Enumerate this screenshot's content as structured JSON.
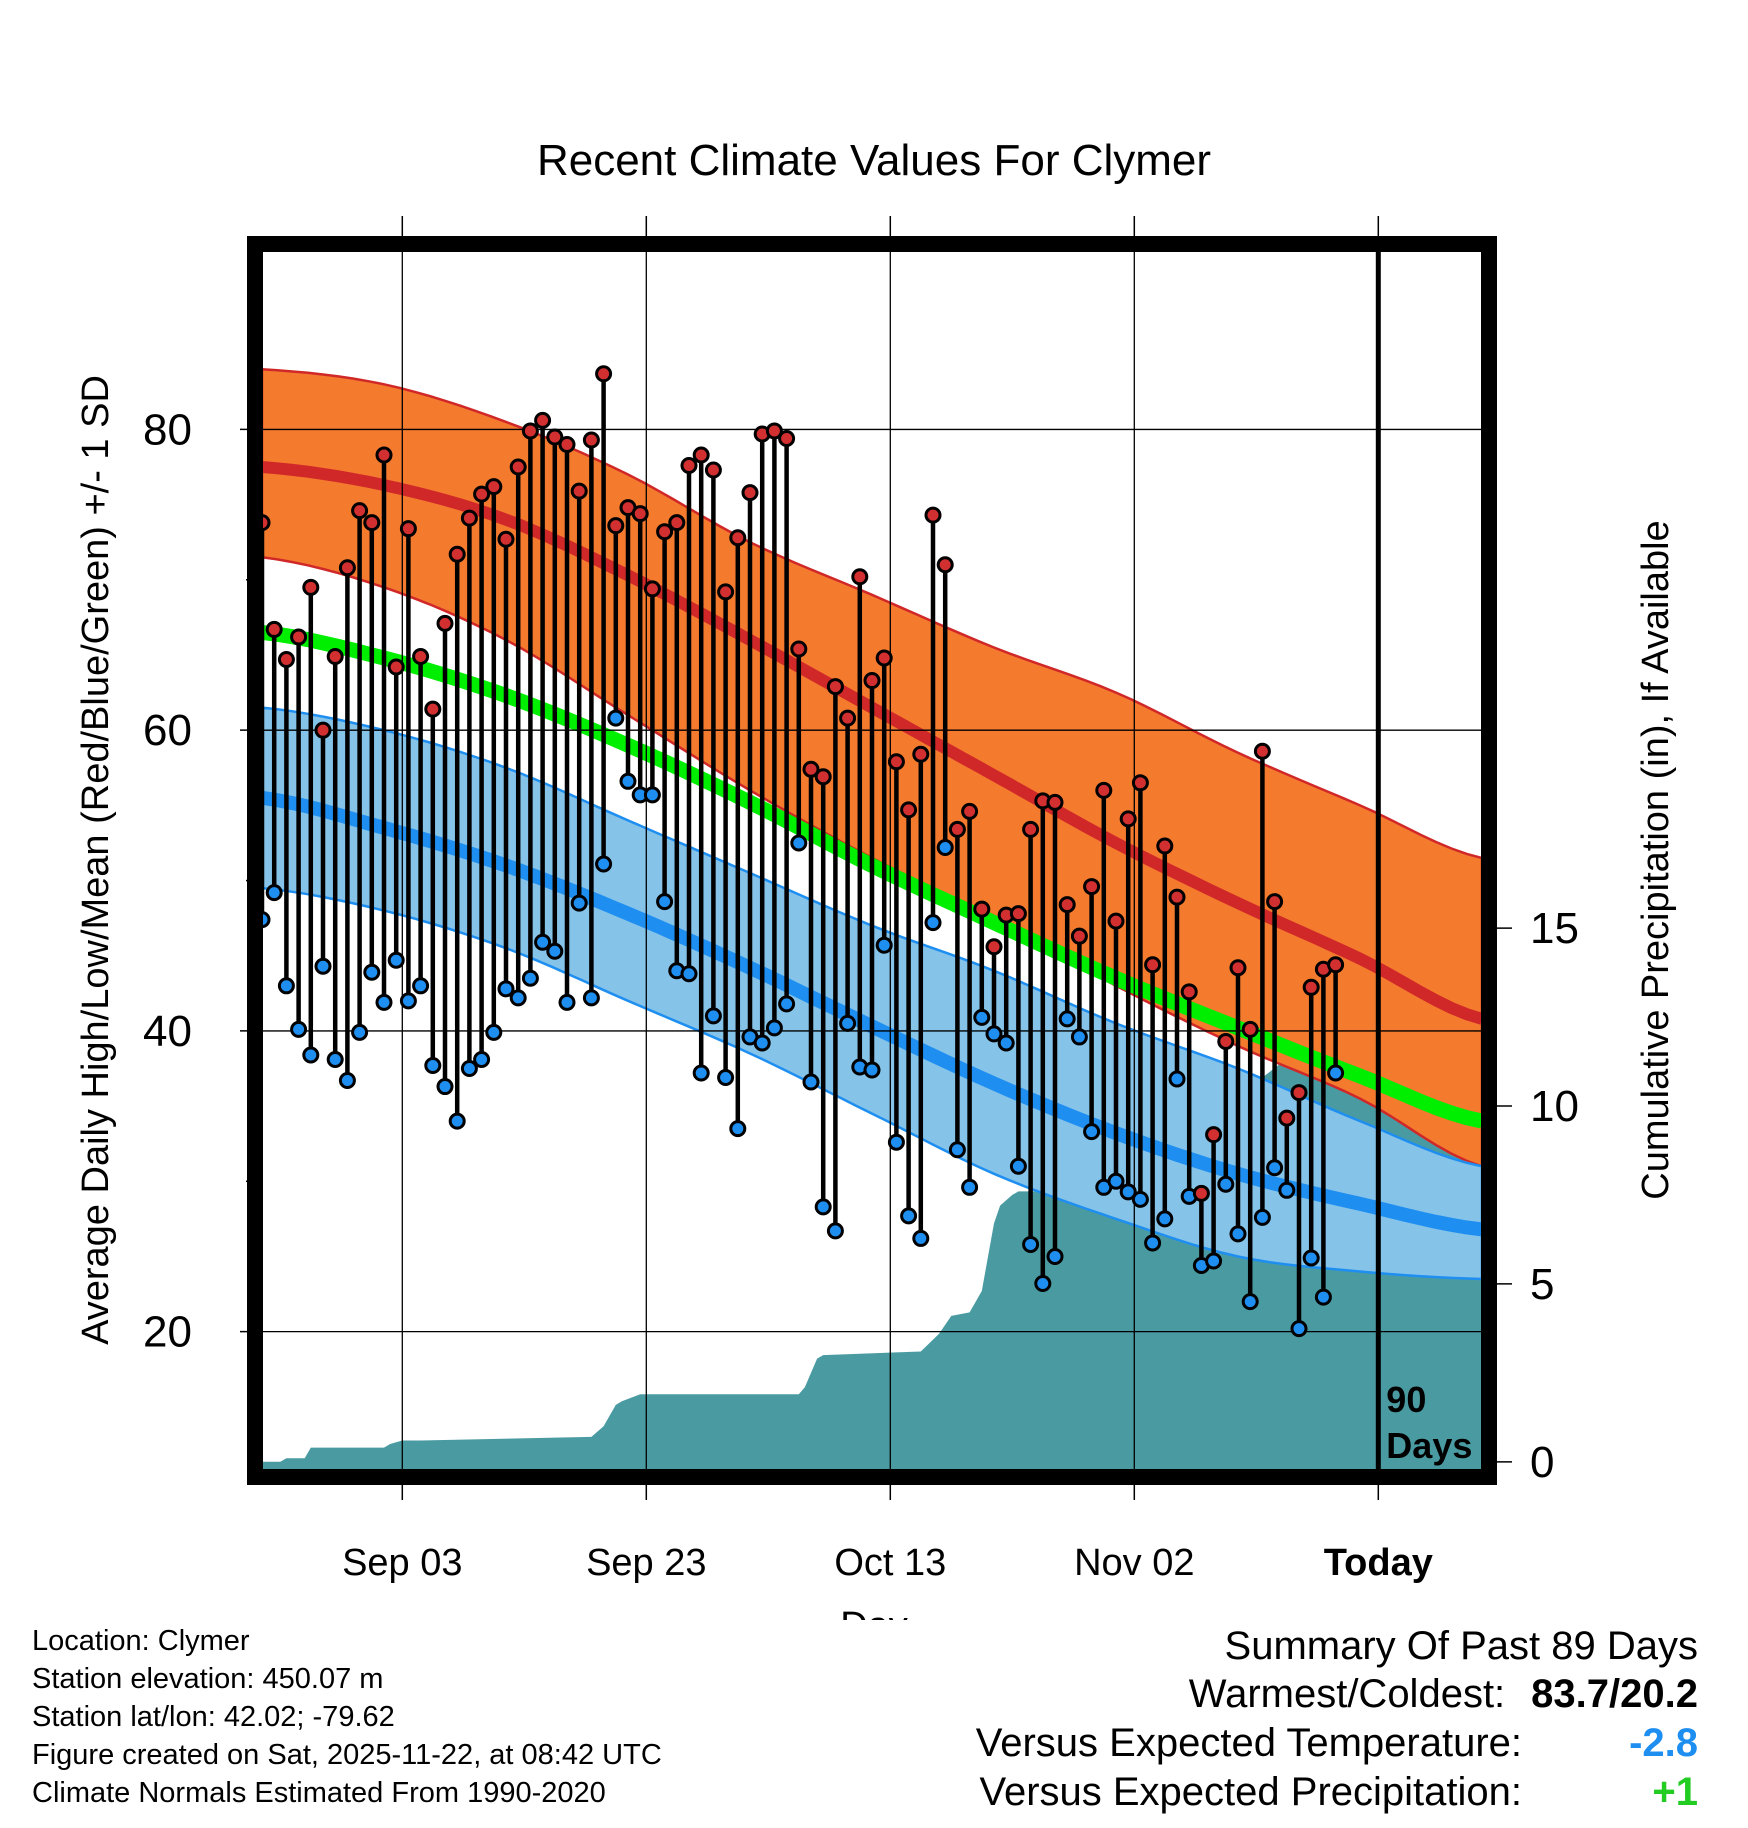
{
  "chart_data": {
    "type": "line",
    "title": "Recent Climate Values For Clymer",
    "xlabel": "Day",
    "ylabel_left": "Average Daily High/Low/Mean (Red/Blue/Green) +/- 1 SD",
    "ylabel_right": "Cumulative Precipitation (in), If Available",
    "x_range": [
      0,
      100
    ],
    "y_range": [
      10.8,
      91.8
    ],
    "precip_range": [
      -0.23,
      34.0
    ],
    "x_tick_labels": [
      {
        "day": 11.5,
        "label": "Sep 03"
      },
      {
        "day": 31.5,
        "label": "Sep 23"
      },
      {
        "day": 51.5,
        "label": "Oct 13"
      },
      {
        "day": 71.5,
        "label": "Nov 02"
      },
      {
        "day": 91.5,
        "label": "Today"
      }
    ],
    "y_ticks": [
      20,
      40,
      60,
      80
    ],
    "y_minor_ticks": [
      30,
      50,
      70
    ],
    "precip_ticks": [
      0,
      5,
      10,
      15
    ],
    "today_day": 91.5,
    "today_label": [
      "90",
      "Days"
    ],
    "normals": {
      "days": [
        0,
        10,
        20,
        30,
        40,
        50,
        60,
        70,
        80,
        90,
        100
      ],
      "high_mean": [
        77.5,
        76.3,
        74.0,
        70.3,
        66.0,
        61.5,
        57.0,
        52.5,
        48.5,
        44.8,
        40.8
      ],
      "high_upper": [
        84.0,
        83.0,
        80.5,
        77.0,
        72.5,
        69.0,
        65.5,
        62.5,
        58.5,
        55.0,
        51.5
      ],
      "high_lower": [
        71.5,
        69.5,
        66.0,
        61.0,
        56.0,
        51.5,
        47.5,
        43.0,
        39.0,
        35.5,
        31.0
      ],
      "mean": [
        66.5,
        64.8,
        62.3,
        59.0,
        55.2,
        51.0,
        47.2,
        43.5,
        40.2,
        37.0,
        34.0
      ],
      "low_mean": [
        55.5,
        53.5,
        51.0,
        47.8,
        44.2,
        40.3,
        36.5,
        33.2,
        30.5,
        28.5,
        26.8
      ],
      "low_upper": [
        61.5,
        60.0,
        57.5,
        54.0,
        50.5,
        47.0,
        44.0,
        40.5,
        37.5,
        34.0,
        31.0
      ],
      "low_lower": [
        49.5,
        48.0,
        45.5,
        42.0,
        38.5,
        34.5,
        30.5,
        27.5,
        25.0,
        24.0,
        23.5
      ]
    },
    "daily": {
      "start_day": 0,
      "highs": [
        73.8,
        66.7,
        64.7,
        66.2,
        69.5,
        60.0,
        64.9,
        70.8,
        74.6,
        73.8,
        78.3,
        64.2,
        73.4,
        64.9,
        61.4,
        67.1,
        71.7,
        74.1,
        75.7,
        76.2,
        72.7,
        77.5,
        79.9,
        80.6,
        79.5,
        79.0,
        75.9,
        79.3,
        83.7,
        73.6,
        74.8,
        74.4,
        69.4,
        73.2,
        73.8,
        77.6,
        78.3,
        77.3,
        69.2,
        72.8,
        75.8,
        79.7,
        79.9,
        79.4,
        65.4,
        57.4,
        56.9,
        62.9,
        60.8,
        70.2,
        63.3,
        64.8,
        57.9,
        54.7,
        58.4,
        74.3,
        71.0,
        53.4,
        54.6,
        48.1,
        45.6,
        47.7,
        47.8,
        53.4,
        55.3,
        55.2,
        48.4,
        46.3,
        49.6,
        56.0,
        47.3,
        54.1,
        56.5,
        44.4,
        52.3,
        48.9,
        42.6,
        29.2,
        33.1,
        39.3,
        44.2,
        40.1,
        58.6,
        48.6,
        34.2,
        35.9,
        42.9,
        44.1,
        44.4
      ],
      "lows": [
        47.4,
        49.2,
        43.0,
        40.1,
        38.4,
        44.3,
        38.1,
        36.7,
        39.9,
        43.9,
        41.9,
        44.7,
        42.0,
        43.0,
        37.7,
        36.3,
        34.0,
        37.5,
        38.1,
        39.9,
        42.8,
        42.2,
        43.5,
        45.9,
        45.3,
        41.9,
        48.5,
        42.2,
        51.1,
        60.8,
        56.6,
        55.7,
        55.7,
        48.6,
        44.0,
        43.8,
        37.2,
        41.0,
        36.9,
        33.5,
        39.6,
        39.2,
        40.2,
        41.8,
        52.5,
        36.6,
        28.3,
        26.7,
        40.5,
        37.6,
        37.4,
        45.7,
        32.6,
        27.7,
        26.2,
        47.2,
        52.2,
        32.1,
        29.6,
        40.9,
        39.8,
        39.2,
        31.0,
        25.8,
        23.2,
        25.0,
        40.8,
        39.6,
        33.3,
        29.6,
        30.0,
        29.3,
        28.8,
        25.9,
        27.5,
        36.8,
        29.0,
        24.4,
        24.7,
        29.8,
        26.5,
        22.0,
        27.6,
        30.9,
        29.4,
        20.2,
        24.9,
        22.3,
        37.2
      ]
    },
    "precip": {
      "days": [
        0,
        1.5,
        2.0,
        3.5,
        4.0,
        10.0,
        10.5,
        11.5,
        12.5,
        13.0,
        27.0,
        28.0,
        29.0,
        29.5,
        31.0,
        32.0,
        44.0,
        44.5,
        45.5,
        46.0,
        54.0,
        55.5,
        56.5,
        58.0,
        59.0,
        60.0,
        60.5,
        61.5,
        62.0,
        64.0,
        64.5,
        66.5,
        67.0,
        67.5,
        68.0,
        72.0,
        72.5,
        73.5,
        74.0,
        76.0,
        78.0,
        80.0,
        82.0,
        83.5,
        84.0,
        88.0,
        100.0
      ],
      "values": [
        0,
        0,
        0.1,
        0.1,
        0.4,
        0.4,
        0.5,
        0.6,
        0.6,
        0.6,
        0.7,
        1.0,
        1.6,
        1.7,
        1.9,
        1.9,
        1.9,
        2.1,
        2.9,
        3.0,
        3.1,
        3.6,
        4.1,
        4.2,
        4.8,
        6.7,
        7.2,
        7.5,
        7.6,
        7.6,
        7.6,
        7.6,
        8.4,
        8.8,
        8.9,
        9.0,
        9.0,
        9.4,
        9.6,
        9.8,
        10.3,
        10.6,
        10.8,
        11.2,
        11.8,
        11.9,
        11.9
      ]
    },
    "colors": {
      "high_band": "#f47a2e",
      "high_line": "#d02828",
      "mean_line": "#00ee00",
      "low_band": "#86c3e9",
      "low_line": "#1e8ff0",
      "overlap": "#9b1010",
      "precip": "#4a9aa2",
      "high_marker": "#d23030",
      "low_marker": "#1e8ff0"
    }
  },
  "info": {
    "location": "Location: Clymer",
    "elevation": "Station elevation: 450.07 m",
    "latlon": "Station lat/lon: 42.02; -79.62",
    "created": "Figure created on Sat, 2025-11-22, at 08:42 UTC",
    "normals": "Climate Normals Estimated From 1990-2020"
  },
  "summary": {
    "title": "Summary Of Past 89 Days",
    "warmest_label": "Warmest/Coldest:",
    "warmest_value": "83.7/20.2",
    "temp_label": "Versus Expected Temperature:",
    "temp_value": "-2.8",
    "temp_color": "#1e8ff0",
    "precip_label": "Versus Expected Precipitation:",
    "precip_value": "+1",
    "precip_color": "#22cc22"
  }
}
